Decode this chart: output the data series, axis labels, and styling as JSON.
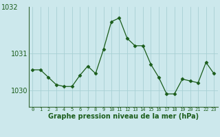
{
  "x": [
    0,
    1,
    2,
    3,
    4,
    5,
    6,
    7,
    8,
    9,
    10,
    11,
    12,
    13,
    14,
    15,
    16,
    17,
    18,
    19,
    20,
    21,
    22,
    23
  ],
  "y": [
    1030.55,
    1030.55,
    1030.35,
    1030.15,
    1030.1,
    1030.1,
    1030.4,
    1030.65,
    1030.45,
    1031.1,
    1031.85,
    1031.95,
    1031.4,
    1031.2,
    1031.2,
    1030.7,
    1030.35,
    1029.9,
    1029.9,
    1030.3,
    1030.25,
    1030.2,
    1030.75,
    1030.45
  ],
  "line_color": "#1a5c1a",
  "marker": "D",
  "marker_size": 2.5,
  "background_color": "#cce8ec",
  "grid_color": "#a8d0d4",
  "xlabel": "Graphe pression niveau de la mer (hPa)",
  "xlabel_fontsize": 7,
  "ytick_labels": [
    "1030",
    "1031"
  ],
  "ytick_values": [
    1030,
    1031
  ],
  "ylim": [
    1029.55,
    1032.25
  ],
  "xlim": [
    -0.5,
    23.5
  ],
  "xtick_values": [
    0,
    1,
    2,
    3,
    4,
    5,
    6,
    7,
    8,
    9,
    10,
    11,
    12,
    13,
    14,
    15,
    16,
    17,
    18,
    19,
    20,
    21,
    22,
    23
  ],
  "top_label": "1032",
  "spine_color": "#336633",
  "tick_color": "#1a5c1a",
  "label_color": "#1a5c1a"
}
